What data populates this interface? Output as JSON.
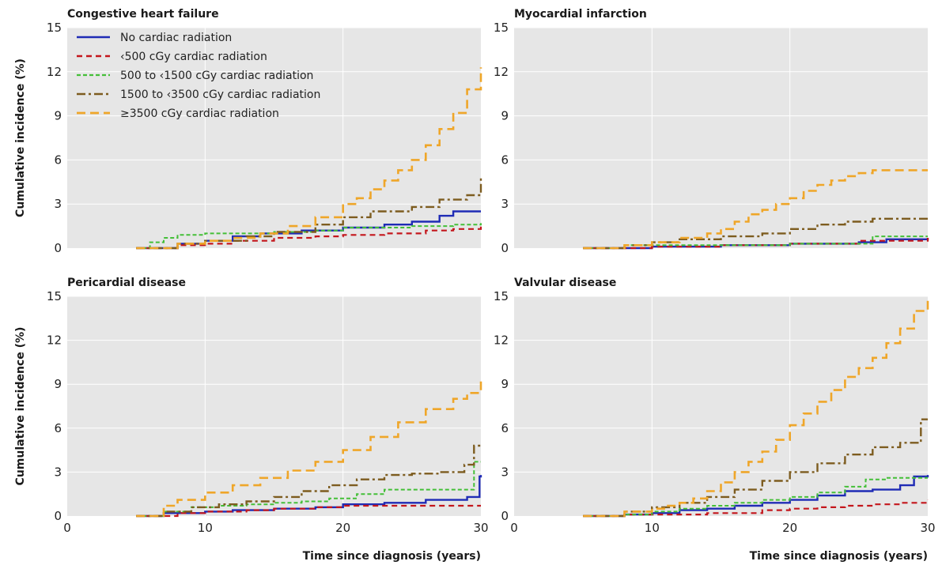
{
  "chart_data": {
    "type": "line",
    "step": true,
    "xlim": [
      0,
      30
    ],
    "ylim": [
      0,
      15
    ],
    "x_ticks": [
      0,
      10,
      20,
      30
    ],
    "y_ticks": [
      0,
      3,
      6,
      9,
      12,
      15
    ],
    "x_tick_labels": [
      "0",
      "10",
      "20",
      "30"
    ],
    "y_tick_labels": [
      "0",
      "3",
      "6",
      "9",
      "12",
      "15"
    ],
    "ylabel": "Cumulative incidence (%)",
    "xlabel": "Time since diagnosis (years)",
    "grid": true,
    "background": "#e6e6e6",
    "legend_placement": "top-left of first panel",
    "series_styles": [
      {
        "name": "No cardiac radiation",
        "color": "#1f2bb5",
        "dash": "solid"
      },
      {
        "name": "<500 cGy cardiac radiation",
        "color": "#c4161c",
        "dash": "dashed"
      },
      {
        "name": "500 to <1500 cGy cardiac radiation",
        "color": "#44bf38",
        "dash": "dotted-dashed-short"
      },
      {
        "name": "1500 to <3500 cGy cardiac radiation",
        "color": "#7d5c1f",
        "dash": "dash-dot"
      },
      {
        "name": "≥3500 cGy cardiac radiation",
        "color": "#efa629",
        "dash": "long-dashed"
      }
    ],
    "legend_labels": [
      "No cardiac radiation",
      "‹500 cGy cardiac radiation",
      "500 to ‹1500 cGy cardiac radiation",
      "1500 to ‹3500 cGy cardiac radiation",
      "≥3500 cGy cardiac radiation"
    ],
    "panels": [
      {
        "title": "Congestive heart failure",
        "show_ylabel": true,
        "show_xticks": false,
        "show_xlabel": false,
        "series": [
          {
            "x": [
              5,
              8,
              10,
              12,
              14,
              17,
              20,
              23,
              25,
              27,
              28,
              30
            ],
            "y": [
              0,
              0.3,
              0.5,
              0.8,
              1.0,
              1.2,
              1.4,
              1.6,
              1.8,
              2.2,
              2.5,
              2.5
            ]
          },
          {
            "x": [
              5,
              8,
              10,
              12,
              15,
              18,
              20,
              23,
              26,
              28,
              30
            ],
            "y": [
              0,
              0.2,
              0.3,
              0.5,
              0.7,
              0.8,
              0.9,
              1.0,
              1.2,
              1.3,
              1.5
            ]
          },
          {
            "x": [
              5,
              6,
              7,
              8,
              10,
              12,
              15,
              18,
              20,
              25,
              28,
              30
            ],
            "y": [
              0,
              0.4,
              0.7,
              0.9,
              1.0,
              1.0,
              1.1,
              1.2,
              1.4,
              1.5,
              1.6,
              1.7
            ]
          },
          {
            "x": [
              5,
              8,
              10,
              13,
              15,
              18,
              20,
              22,
              25,
              27,
              29,
              30
            ],
            "y": [
              0,
              0.3,
              0.5,
              0.8,
              1.1,
              1.6,
              2.1,
              2.5,
              2.8,
              3.3,
              3.6,
              4.9
            ]
          },
          {
            "x": [
              5,
              8,
              10,
              12,
              14,
              16,
              18,
              20,
              21,
              22,
              23,
              24,
              25,
              26,
              27,
              28,
              29,
              30
            ],
            "y": [
              0,
              0.3,
              0.5,
              0.7,
              1.0,
              1.5,
              2.1,
              3.0,
              3.4,
              4.0,
              4.6,
              5.3,
              6.0,
              7.0,
              8.1,
              9.2,
              10.8,
              12.3
            ]
          }
        ]
      },
      {
        "title": "Myocardial infarction",
        "show_ylabel": false,
        "show_xticks": false,
        "show_xlabel": false,
        "series": [
          {
            "x": [
              5,
              10,
              15,
              20,
              25,
              27,
              30
            ],
            "y": [
              0,
              0.1,
              0.2,
              0.3,
              0.4,
              0.6,
              0.7
            ]
          },
          {
            "x": [
              5,
              10,
              15,
              20,
              25,
              30
            ],
            "y": [
              0,
              0.1,
              0.2,
              0.3,
              0.5,
              0.7
            ]
          },
          {
            "x": [
              5,
              8,
              10,
              15,
              20,
              25,
              26,
              30
            ],
            "y": [
              0,
              0.2,
              0.2,
              0.2,
              0.3,
              0.3,
              0.8,
              0.8
            ]
          },
          {
            "x": [
              5,
              8,
              10,
              12,
              15,
              18,
              20,
              22,
              24,
              26,
              28,
              30
            ],
            "y": [
              0,
              0.2,
              0.4,
              0.6,
              0.8,
              1.0,
              1.3,
              1.6,
              1.8,
              2.0,
              2.0,
              2.0
            ]
          },
          {
            "x": [
              5,
              8,
              10,
              12,
              14,
              15,
              16,
              17,
              18,
              19,
              20,
              21,
              22,
              23,
              24,
              25,
              26,
              30
            ],
            "y": [
              0,
              0.2,
              0.4,
              0.7,
              1.0,
              1.3,
              1.8,
              2.3,
              2.6,
              3.0,
              3.4,
              3.9,
              4.3,
              4.6,
              4.9,
              5.1,
              5.3,
              5.3
            ]
          }
        ]
      },
      {
        "title": "Pericardial disease",
        "show_ylabel": true,
        "show_xticks": true,
        "show_xlabel": true,
        "series": [
          {
            "x": [
              5,
              7,
              10,
              12,
              15,
              18,
              20,
              23,
              26,
              29,
              29.9,
              30
            ],
            "y": [
              0,
              0.2,
              0.3,
              0.4,
              0.5,
              0.6,
              0.8,
              0.9,
              1.1,
              1.3,
              2.7,
              2.8
            ]
          },
          {
            "x": [
              5,
              8,
              10,
              13,
              15,
              18,
              20,
              23,
              26,
              30
            ],
            "y": [
              0,
              0.2,
              0.3,
              0.4,
              0.5,
              0.6,
              0.7,
              0.7,
              0.7,
              0.7
            ]
          },
          {
            "x": [
              5,
              7,
              9,
              11,
              13,
              15,
              17,
              19,
              21,
              23,
              28.8,
              29.5,
              30
            ],
            "y": [
              0,
              0.3,
              0.6,
              0.7,
              0.8,
              0.9,
              1.0,
              1.2,
              1.5,
              1.8,
              1.8,
              3.7,
              3.7
            ]
          },
          {
            "x": [
              5,
              7,
              9,
              11,
              13,
              15,
              17,
              19,
              21,
              23,
              25,
              27,
              28.8,
              29.5,
              30
            ],
            "y": [
              0,
              0.3,
              0.6,
              0.8,
              1.0,
              1.3,
              1.7,
              2.1,
              2.5,
              2.8,
              2.9,
              3.0,
              3.5,
              4.8,
              4.8
            ]
          },
          {
            "x": [
              5,
              7,
              8,
              10,
              12,
              14,
              16,
              18,
              20,
              22,
              24,
              26,
              28,
              29,
              30
            ],
            "y": [
              0,
              0.7,
              1.1,
              1.6,
              2.1,
              2.6,
              3.1,
              3.7,
              4.5,
              5.4,
              6.4,
              7.3,
              8.0,
              8.4,
              9.5
            ]
          }
        ]
      },
      {
        "title": "Valvular disease",
        "show_ylabel": false,
        "show_xticks": true,
        "show_xlabel": true,
        "series": [
          {
            "x": [
              5,
              8,
              10,
              12,
              14,
              16,
              18,
              20,
              22,
              24,
              26,
              28,
              29,
              30
            ],
            "y": [
              0,
              0.1,
              0.2,
              0.4,
              0.5,
              0.7,
              0.9,
              1.1,
              1.4,
              1.7,
              1.8,
              2.1,
              2.7,
              2.8
            ]
          },
          {
            "x": [
              5,
              8,
              10,
              14,
              18,
              20,
              22,
              24,
              26,
              28,
              30
            ],
            "y": [
              0,
              0.1,
              0.1,
              0.2,
              0.4,
              0.5,
              0.6,
              0.7,
              0.8,
              0.9,
              1.1
            ]
          },
          {
            "x": [
              5,
              8,
              10,
              12,
              14,
              16,
              18,
              20,
              22,
              24,
              25.5,
              27,
              30
            ],
            "y": [
              0,
              0.1,
              0.3,
              0.5,
              0.7,
              0.9,
              1.1,
              1.3,
              1.6,
              2.0,
              2.5,
              2.6,
              2.6
            ]
          },
          {
            "x": [
              5,
              8,
              10,
              12,
              14,
              16,
              18,
              20,
              22,
              24,
              26,
              28,
              29.5,
              30
            ],
            "y": [
              0,
              0.3,
              0.6,
              0.9,
              1.3,
              1.8,
              2.4,
              3.0,
              3.6,
              4.2,
              4.7,
              5.0,
              6.6,
              6.6
            ]
          },
          {
            "x": [
              5,
              8,
              10,
              11,
              12,
              13,
              14,
              15,
              16,
              17,
              18,
              19,
              20,
              21,
              22,
              23,
              24,
              25,
              26,
              27,
              28,
              29,
              30
            ],
            "y": [
              0,
              0.3,
              0.5,
              0.7,
              0.9,
              1.2,
              1.7,
              2.3,
              3.0,
              3.7,
              4.4,
              5.2,
              6.2,
              7.0,
              7.8,
              8.6,
              9.5,
              10.1,
              10.8,
              11.8,
              12.8,
              14.0,
              15.0
            ]
          }
        ]
      }
    ]
  }
}
